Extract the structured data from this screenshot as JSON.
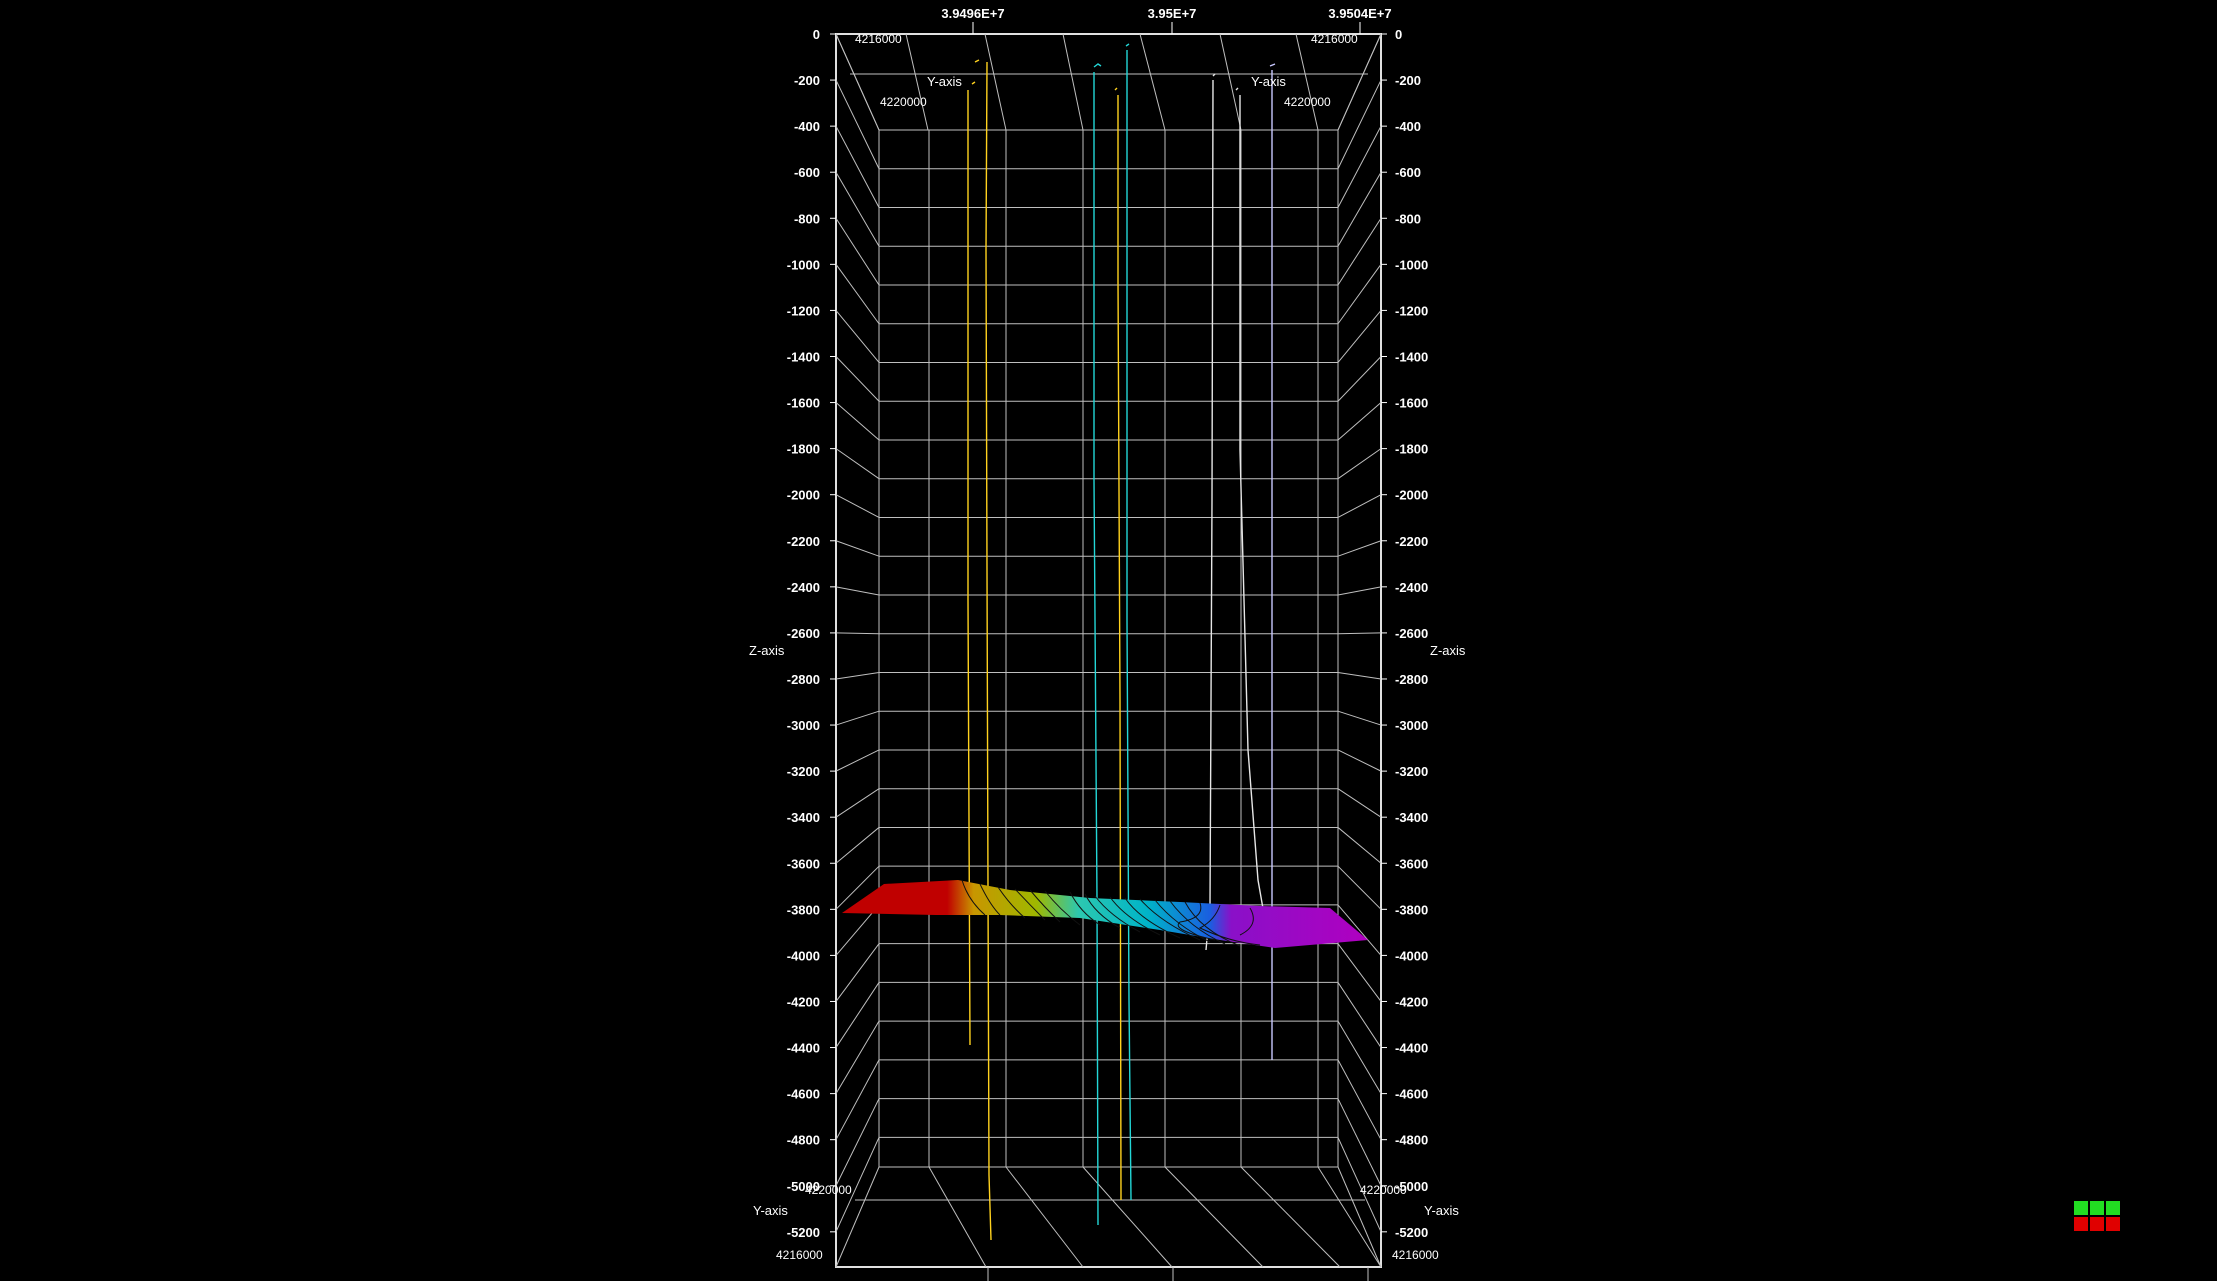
{
  "colors": {
    "background": "#000000",
    "grid": "#bfbfbf",
    "text": "#ffffff",
    "nav_top": "#22dd22",
    "nav_bottom": "#e00000"
  },
  "axes": {
    "x_ticks": [
      "3.9496E+7",
      "3.95E+7",
      "3.9504E+7"
    ],
    "z_ticks": [
      "0",
      "-200",
      "-400",
      "-600",
      "-800",
      "-1000",
      "-1200",
      "-1400",
      "-1600",
      "-1800",
      "-2000",
      "-2200",
      "-2400",
      "-2600",
      "-2800",
      "-3000",
      "-3200",
      "-3400",
      "-3600",
      "-3800",
      "-4000",
      "-4200",
      "-4400",
      "-4600",
      "-4800",
      "-5000",
      "-5200"
    ],
    "z_label": "Z-axis",
    "y_label": "Y-axis",
    "y_near": "4216000",
    "y_far": "4220000"
  },
  "surface": {
    "depth_min": -3800,
    "depth_max": -3960,
    "colormap": [
      "#cc0000",
      "#c8a000",
      "#a0b400",
      "#00b4b4",
      "#1060e0",
      "#b000c8"
    ]
  },
  "wells": [
    {
      "color": "#ffd21e"
    },
    {
      "color": "#ffd21e"
    },
    {
      "color": "#23d7d7"
    },
    {
      "color": "#23d7d7"
    },
    {
      "color": "#e6e6e6"
    },
    {
      "color": "#e6e6e6"
    },
    {
      "color": "#c8c8ff"
    }
  ],
  "nav_widget": {
    "cells": 6
  }
}
